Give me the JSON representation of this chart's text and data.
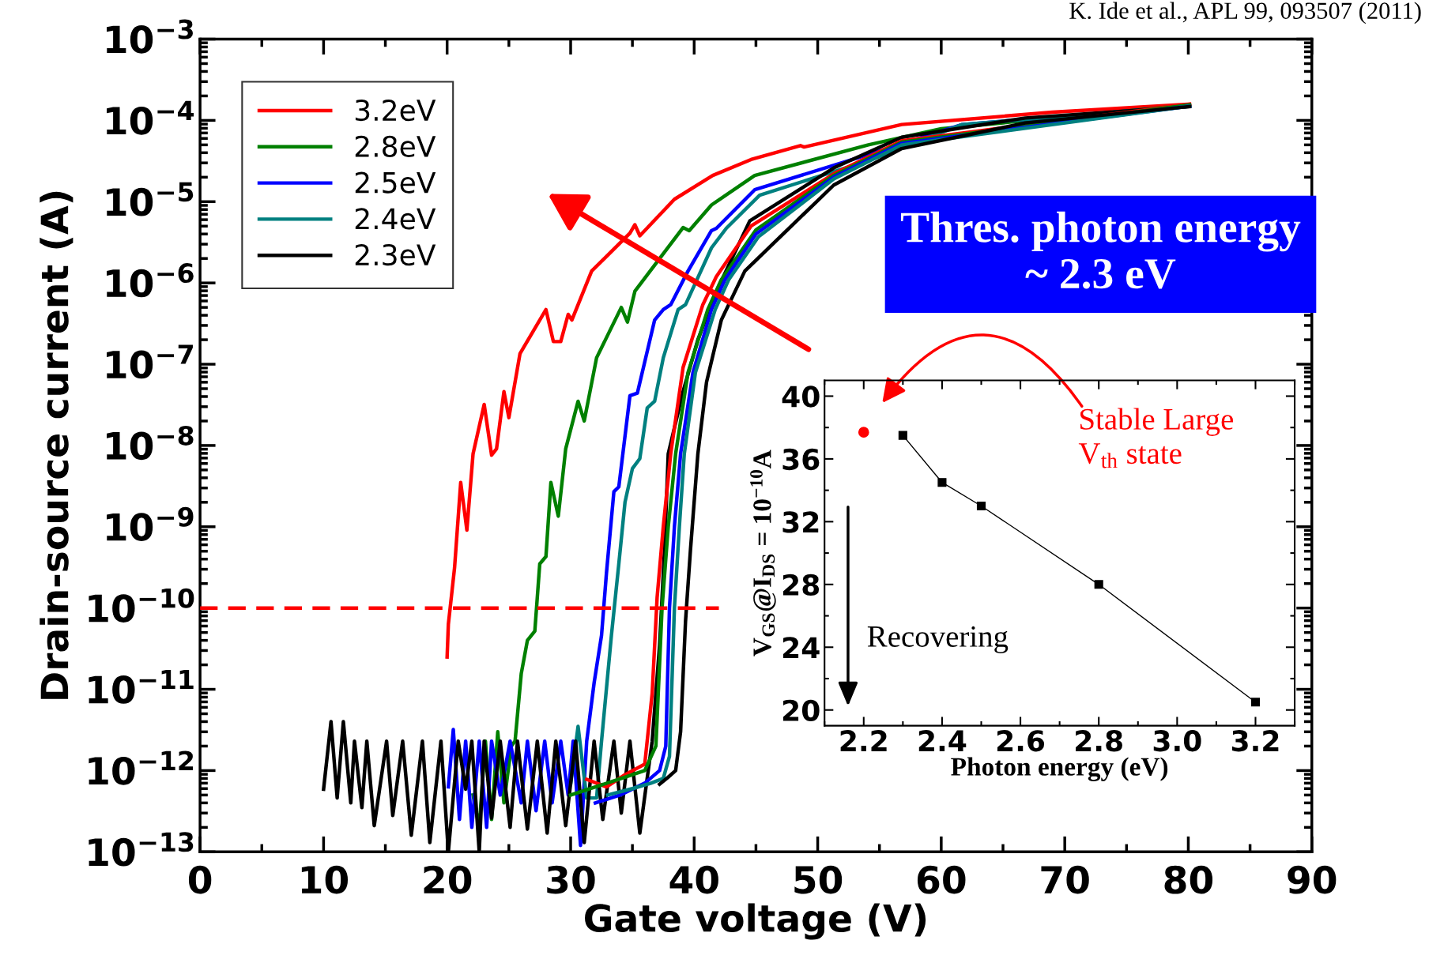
{
  "chart_data": [
    {
      "type": "line",
      "xlabel": "Gate voltage (V)",
      "ylabel": "Drain-source current (A)",
      "log": "y",
      "xlim": [
        0,
        90
      ],
      "xticks": [
        0,
        10,
        20,
        30,
        40,
        50,
        60,
        70,
        80,
        90
      ],
      "ylim": [
        1e-13,
        0.001
      ],
      "yticks": [
        {
          "value": 1e-13,
          "label": "10$^{−13}$"
        },
        {
          "value": 1e-12,
          "label": "10$^{−12}$"
        },
        {
          "value": 1e-11,
          "label": "10$^{−11}$"
        },
        {
          "value": 1e-10,
          "label": "10$^{−10}$"
        },
        {
          "value": 1e-09,
          "label": "10$^{−9}$"
        },
        {
          "value": 1e-08,
          "label": "10$^{−8}$"
        },
        {
          "value": 1e-07,
          "label": "10$^{−7}$"
        },
        {
          "value": 1e-06,
          "label": "10$^{−6}$"
        },
        {
          "value": 1e-05,
          "label": "10$^{−5}$"
        },
        {
          "value": 0.0001,
          "label": "10$^{−4}$"
        },
        {
          "value": 0.001,
          "label": "10$^{−3}$"
        }
      ],
      "legend": "top left",
      "grid": false,
      "line_style": "solid",
      "marker": "none",
      "annotations": [
        "K. Ide et al., APL 99, 093507 (2011)",
        "Thres. photon energy\n~ 2.3 eV"
      ],
      "series": [
        {
          "name": "3.2eV",
          "color": "#ff0000",
          "x": [
            20.0,
            20.1,
            20.6,
            21.1,
            21.6,
            22.1,
            23.0,
            23.6,
            24.0,
            24.6,
            25.0,
            25.9,
            28.0,
            28.6,
            29.2,
            29.8,
            30.1,
            31.7,
            34.8,
            35.2,
            35.6,
            38.4,
            41.5,
            44.6,
            48.6,
            48.9,
            56.8,
            69.0,
            80.1
          ],
          "values": [
            2.5e-11,
            6.3e-11,
            3.1e-10,
            3.5e-09,
            9.1e-10,
            7.9e-09,
            3.2e-08,
            7.6e-09,
            9.1e-09,
            4.6e-08,
            2.2e-08,
            1.35e-07,
            4.7e-07,
            1.9e-07,
            1.9e-07,
            4.1e-07,
            3.5e-07,
            1.4e-06,
            4.1e-06,
            5.2e-06,
            3.8e-06,
            1.07e-05,
            2.1e-05,
            3.3e-05,
            4.9e-05,
            4.7e-05,
            8.9e-05,
            0.000126,
            0.000158
          ]
        },
        {
          "name": "2.8eV",
          "color": "#008000",
          "x": [
            22.1,
            22.6,
            23.1,
            23.6,
            24.1,
            24.6,
            25.2,
            25.5,
            26.0,
            26.5,
            27.1,
            27.5,
            28.0,
            28.4,
            29.0,
            29.6,
            30.6,
            31.1,
            32.1,
            34.1,
            34.6,
            35.2,
            39.1,
            39.6,
            41.4,
            44.9,
            54.1,
            60.0,
            80.1
          ],
          "values": [
            5e-13,
            2e-13,
            2.3e-12,
            2.5e-13,
            3e-12,
            4e-13,
            2e-12,
            2.3e-12,
            1.55e-11,
            4e-11,
            5.2e-11,
            3.5e-10,
            4.3e-10,
            3.5e-09,
            1.35e-09,
            9.1e-09,
            3.5e-08,
            2e-08,
            1.2e-07,
            5e-07,
            3.3e-07,
            7.9e-07,
            4.8e-06,
            4.4e-06,
            9.1e-06,
            2.1e-05,
            5e-05,
            7.9e-05,
            0.000155
          ]
        },
        {
          "name": "2.5eV",
          "color": "#0000ff",
          "x": [
            20.1,
            20.5,
            21.0,
            21.5,
            22.0,
            22.6,
            23.2,
            23.6,
            24.3,
            25.1,
            26.0,
            26.5,
            27.2,
            27.9,
            28.5,
            29.2,
            29.8,
            30.2,
            30.8,
            31.3,
            31.9,
            32.5,
            32.9,
            33.5,
            33.9,
            34.8,
            35.4,
            36.8,
            37.5,
            38.1,
            39.5,
            41.4,
            41.8,
            44.9,
            54.1,
            61.7,
            80.1
          ],
          "values": [
            6.3e-13,
            3.2e-12,
            2.5e-13,
            2.3e-12,
            2e-13,
            2.3e-12,
            2e-13,
            2.3e-12,
            5e-13,
            2.3e-12,
            4e-13,
            2.3e-12,
            3.2e-13,
            2.3e-12,
            4e-13,
            2.3e-12,
            5e-13,
            2.3e-12,
            1.2e-13,
            2.3e-12,
            1.2e-11,
            4.6e-11,
            2.7e-10,
            2.7e-09,
            3.1e-09,
            4.1e-08,
            4.4e-08,
            3.5e-07,
            4.7e-07,
            5.4e-07,
            1.4e-06,
            4.4e-06,
            4.7e-06,
            1.4e-05,
            3.8e-05,
            8.9e-05,
            0.00015
          ]
        },
        {
          "name": "2.4eV",
          "color": "#008080",
          "x": [
            30.0,
            30.6,
            31.3,
            32.1,
            32.5,
            33.3,
            33.9,
            34.4,
            35.0,
            35.6,
            36.2,
            36.8,
            37.5,
            38.7,
            39.3,
            41.4,
            42.6,
            45.3,
            54.1,
            61.7,
            80.1
          ],
          "values": [
            6.8e-13,
            3.5e-12,
            4.6e-13,
            4.6e-13,
            2.3e-12,
            4.6e-11,
            3.5e-10,
            2e-09,
            5.2e-09,
            6.9e-09,
            2.9e-08,
            3.5e-08,
            1.2e-07,
            4.7e-07,
            5.4e-07,
            2.7e-06,
            4.7e-06,
            1.2e-05,
            3.2e-05,
            8.9e-05,
            0.00015
          ]
        },
        {
          "name": "2.3eV",
          "color": "#000000",
          "x": [
            10.0,
            10.6,
            11.1,
            11.6,
            12.2,
            12.5,
            13.1,
            13.5,
            14.1,
            15.1,
            15.6,
            16.4,
            17.1,
            18.0,
            18.6,
            19.5,
            20.1,
            20.9,
            21.5,
            22.0,
            22.6,
            23.0,
            23.6,
            24.3,
            25.1,
            25.7,
            26.5,
            27.3,
            28.1,
            28.8,
            29.6,
            30.4,
            31.1,
            31.9,
            32.6,
            33.5,
            34.1,
            34.8,
            35.6,
            36.6,
            37.2,
            37.6,
            37.9,
            39.1,
            40.3,
            41.8,
            44.5,
            51.3,
            56.8,
            66.8,
            80.1
          ],
          "values": [
            5.9e-13,
            4e-12,
            4.6e-13,
            4e-12,
            4e-13,
            2.3e-12,
            3.5e-13,
            2.3e-12,
            2.1e-13,
            2.3e-12,
            2.8e-13,
            2.3e-12,
            1.6e-13,
            2.3e-12,
            1.3e-13,
            2.3e-12,
            1e-13,
            2.3e-12,
            5.9e-13,
            2.3e-12,
            1e-13,
            2.3e-12,
            2.6e-13,
            2.3e-12,
            2e-13,
            2.3e-12,
            1.9e-13,
            2.3e-12,
            1.7e-13,
            2.3e-12,
            2.1e-13,
            2.3e-12,
            1.3e-13,
            2.3e-12,
            2.5e-13,
            2.3e-12,
            3e-13,
            2.3e-12,
            1.7e-13,
            2.3e-12,
            3.5e-11,
            5.2e-10,
            7.9e-09,
            4.6e-08,
            2e-07,
            7.9e-07,
            5.8e-06,
            2.6e-05,
            6.2e-05,
            0.000107,
            0.000148
          ]
        },
        {
          "color": "#ff0000",
          "x": [
            31.3,
            32.9,
            34.4,
            36.0,
            36.6,
            37.0,
            37.5,
            38.1,
            39.1,
            40.7,
            41.8,
            44.6,
            51.3,
            56.8,
            80.1
          ],
          "values": [
            7.8e-13,
            6.3e-13,
            8.9e-13,
            1.2e-12,
            8.9e-12,
            1.35e-10,
            1e-09,
            7.9e-09,
            9.1e-08,
            5.4e-07,
            1.2e-06,
            5e-06,
            2.2e-05,
            5.6e-05,
            0.000158
          ]
        },
        {
          "color": "#008000",
          "x": [
            30.0,
            32.0,
            34.0,
            36.0,
            36.9,
            37.4,
            37.9,
            38.5,
            39.5,
            41.1,
            42.2,
            45.0,
            51.3,
            56.8,
            80.1
          ],
          "values": [
            5e-13,
            6.3e-13,
            7.9e-13,
            1e-12,
            2e-12,
            1e-10,
            1e-09,
            7.9e-09,
            7.9e-08,
            4.7e-07,
            1.1e-06,
            4.5e-06,
            2.1e-05,
            5.4e-05,
            0.000155
          ]
        },
        {
          "color": "#0000ff",
          "x": [
            32.0,
            34.0,
            36.0,
            37.2,
            37.7,
            38.0,
            38.4,
            38.9,
            39.9,
            41.4,
            42.5,
            45.0,
            51.3,
            56.8,
            80.1
          ],
          "values": [
            4e-13,
            5e-13,
            7e-13,
            1e-12,
            2e-12,
            1e-10,
            1e-09,
            7.9e-09,
            7.9e-08,
            4.7e-07,
            1.1e-06,
            4e-06,
            2e-05,
            5.2e-05,
            0.00015
          ]
        },
        {
          "color": "#008080",
          "x": [
            33.0,
            35.0,
            36.5,
            37.5,
            38.0,
            38.4,
            38.8,
            39.2,
            40.1,
            41.7,
            42.8,
            45.2,
            51.3,
            56.8,
            80.1
          ],
          "values": [
            5e-13,
            6e-13,
            7e-13,
            8e-13,
            1.5e-12,
            1e-10,
            1e-09,
            7.9e-09,
            7.9e-08,
            4.7e-07,
            1.1e-06,
            3.7e-06,
            1.9e-05,
            5e-05,
            0.00015
          ]
        },
        {
          "color": "#000000",
          "x": [
            37.2,
            37.9,
            38.5,
            38.9,
            39.3,
            39.7,
            40.3,
            41.0,
            42.2,
            44.1,
            51.3,
            56.8,
            66.8,
            80.1
          ],
          "values": [
            6.8e-13,
            8.3e-13,
            1e-12,
            3e-12,
            6.9e-11,
            5.2e-10,
            7.9e-09,
            6e-08,
            3.5e-07,
            1.4e-06,
            1.6e-05,
            4.5e-05,
            9.3e-05,
            0.000148
          ]
        },
        {
          "color": "#ff0000",
          "line_style": "dashed",
          "x": [
            0,
            42
          ],
          "values": [
            1e-10,
            1e-10
          ]
        }
      ]
    },
    {
      "type": "line",
      "xlabel": "Photon energy (eV)",
      "ylabel": "V$_{GS}$@I$_{DS}$ = 10$^{−10}$A",
      "xlim": [
        2.1,
        3.3
      ],
      "xticks": [
        {
          "value": 2.2,
          "label": "2.2"
        },
        {
          "value": 2.4,
          "label": "2.4"
        },
        {
          "value": 2.6,
          "label": "2.6"
        },
        {
          "value": 2.8,
          "label": "2.8"
        },
        {
          "value": 3.0,
          "label": "3.0"
        },
        {
          "value": 3.2,
          "label": "3.2"
        }
      ],
      "ylim": [
        19,
        41
      ],
      "yticks": [
        20,
        24,
        28,
        32,
        36,
        40
      ],
      "grid": false,
      "legend": false,
      "annotations": [
        "Stable Large\nV$_{th}$ state",
        "Recovering"
      ],
      "series": [
        {
          "type": "line",
          "color": "#000000",
          "marker": "square",
          "x": [
            2.3,
            2.4,
            2.5,
            2.8,
            3.2
          ],
          "values": [
            37.5,
            34.5,
            33.0,
            28.0,
            20.5
          ]
        },
        {
          "type": "scatter",
          "color": "#ff0000",
          "marker": "circle",
          "x": [
            2.2
          ],
          "values": [
            37.7
          ]
        }
      ]
    }
  ]
}
